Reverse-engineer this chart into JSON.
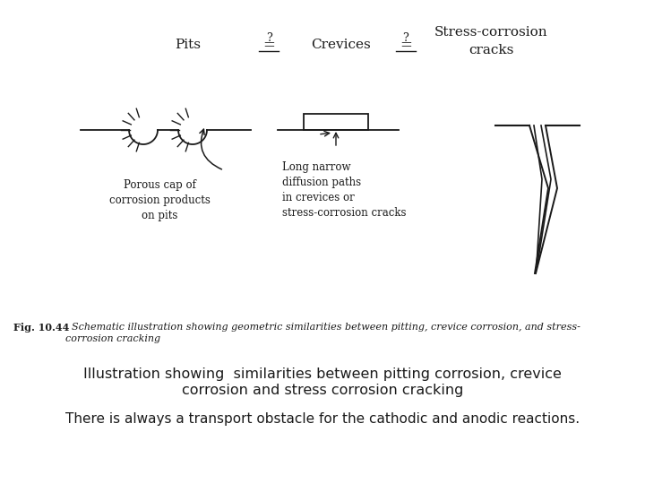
{
  "title_line1": "Illustration showing  similarities between pitting corrosion, crevice",
  "title_line2": "corrosion and stress corrosion cracking",
  "subtitle": "There is always a transport obstacle for the cathodic and anodic reactions.",
  "fig_caption_bold": "Fig. 10.44",
  "fig_caption_italic": "  Schematic illustration showing geometric similarities between pitting, crevice corrosion, and stress-\ncorrosion cracking",
  "label_pits": "Pits",
  "label_crevices": "Crevices",
  "label_scc": "Stress-corrosion\ncracks",
  "label_porous": "Porous cap of\ncorrosion products\non pits",
  "label_diffusion": "Long narrow\ndiffusion paths\nin crevices or\nstress-corrosion cracks",
  "background_color": "#ffffff",
  "line_color": "#1a1a1a",
  "text_color": "#1a1a1a"
}
